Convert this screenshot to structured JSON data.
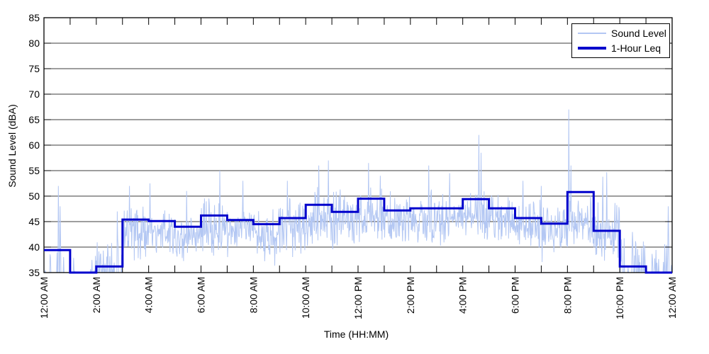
{
  "chart_data": {
    "type": "line",
    "title": "",
    "xlabel": "Time (HH:MM)",
    "ylabel": "Sound Level (dBA)",
    "xlim_hours": [
      0,
      24
    ],
    "ylim": [
      35,
      85
    ],
    "y_ticks": [
      35,
      40,
      45,
      50,
      55,
      60,
      65,
      70,
      75,
      80,
      85
    ],
    "x_ticks": [
      {
        "hour": 0,
        "label": "12:00 AM"
      },
      {
        "hour": 2,
        "label": "2:00 AM"
      },
      {
        "hour": 4,
        "label": "4:00 AM"
      },
      {
        "hour": 6,
        "label": "6:00 AM"
      },
      {
        "hour": 8,
        "label": "8:00 AM"
      },
      {
        "hour": 10,
        "label": "10:00 AM"
      },
      {
        "hour": 12,
        "label": "12:00 PM"
      },
      {
        "hour": 14,
        "label": "2:00 PM"
      },
      {
        "hour": 16,
        "label": "4:00 PM"
      },
      {
        "hour": 18,
        "label": "6:00 PM"
      },
      {
        "hour": 20,
        "label": "8:00 PM"
      },
      {
        "hour": 22,
        "label": "10:00 PM"
      },
      {
        "hour": 24,
        "label": "12:00 AM"
      }
    ],
    "x_minor_tick_every_hours": 1,
    "grid": "horizontal-solid",
    "frame_box": true,
    "legend": {
      "position": "top-right",
      "entries": [
        "Sound Level",
        "1-Hour Leq"
      ]
    },
    "series": [
      {
        "name": "Sound Level",
        "color": "#b3c7f3",
        "style": "noisy-1min-trace",
        "hourly_envelope": [
          {
            "base": 35.0,
            "lo": 35,
            "hi": 39.0,
            "sparse": true,
            "p": 0.12
          },
          {
            "base": 35.0,
            "lo": 35,
            "hi": 39.0,
            "sparse": true,
            "p": 0.1
          },
          {
            "base": 36.0,
            "lo": 35,
            "hi": 41.0,
            "sparse": true,
            "p": 0.45
          },
          {
            "base": 42.5,
            "lo": 36,
            "hi": 48.0,
            "sparse": false,
            "p": 0
          },
          {
            "base": 43.0,
            "lo": 38,
            "hi": 48.5,
            "sparse": false,
            "p": 0
          },
          {
            "base": 42.0,
            "lo": 36,
            "hi": 47.0,
            "sparse": false,
            "p": 0
          },
          {
            "base": 43.5,
            "lo": 37,
            "hi": 50.0,
            "sparse": false,
            "p": 0
          },
          {
            "base": 43.5,
            "lo": 38,
            "hi": 49.0,
            "sparse": false,
            "p": 0
          },
          {
            "base": 42.5,
            "lo": 36,
            "hi": 48.0,
            "sparse": false,
            "p": 0
          },
          {
            "base": 43.5,
            "lo": 37,
            "hi": 50.0,
            "sparse": false,
            "p": 0
          },
          {
            "base": 45.5,
            "lo": 40,
            "hi": 52.0,
            "sparse": false,
            "p": 0
          },
          {
            "base": 45.0,
            "lo": 39,
            "hi": 52.0,
            "sparse": false,
            "p": 0
          },
          {
            "base": 46.0,
            "lo": 40,
            "hi": 52.0,
            "sparse": false,
            "p": 0
          },
          {
            "base": 45.5,
            "lo": 40,
            "hi": 51.0,
            "sparse": false,
            "p": 0
          },
          {
            "base": 45.5,
            "lo": 40,
            "hi": 52.0,
            "sparse": false,
            "p": 0
          },
          {
            "base": 45.5,
            "lo": 40,
            "hi": 51.0,
            "sparse": false,
            "p": 0
          },
          {
            "base": 46.0,
            "lo": 40,
            "hi": 52.0,
            "sparse": false,
            "p": 0
          },
          {
            "base": 45.5,
            "lo": 40,
            "hi": 51.0,
            "sparse": false,
            "p": 0
          },
          {
            "base": 44.5,
            "lo": 38,
            "hi": 50.0,
            "sparse": false,
            "p": 0
          },
          {
            "base": 43.0,
            "lo": 37,
            "hi": 49.0,
            "sparse": false,
            "p": 0
          },
          {
            "base": 45.0,
            "lo": 38,
            "hi": 52.0,
            "sparse": false,
            "p": 0
          },
          {
            "base": 42.0,
            "lo": 36,
            "hi": 49.0,
            "sparse": false,
            "p": 0
          },
          {
            "base": 35.5,
            "lo": 35,
            "hi": 43.0,
            "sparse": true,
            "p": 0.35
          },
          {
            "base": 35.3,
            "lo": 35,
            "hi": 41.0,
            "sparse": true,
            "p": 0.25
          }
        ],
        "spikes": [
          {
            "hour": 0.55,
            "dBA": 52.0
          },
          {
            "hour": 0.62,
            "dBA": 48.0
          },
          {
            "hour": 2.8,
            "dBA": 47.0
          },
          {
            "hour": 3.27,
            "dBA": 52.0
          },
          {
            "hour": 4.05,
            "dBA": 52.5
          },
          {
            "hour": 5.45,
            "dBA": 51.0
          },
          {
            "hour": 6.72,
            "dBA": 55.0
          },
          {
            "hour": 7.6,
            "dBA": 53.0
          },
          {
            "hour": 9.3,
            "dBA": 53.0
          },
          {
            "hour": 10.5,
            "dBA": 56.0
          },
          {
            "hour": 10.87,
            "dBA": 57.0
          },
          {
            "hour": 12.4,
            "dBA": 56.5
          },
          {
            "hour": 12.85,
            "dBA": 54.0
          },
          {
            "hour": 14.7,
            "dBA": 56.0
          },
          {
            "hour": 15.5,
            "dBA": 54.5
          },
          {
            "hour": 16.62,
            "dBA": 62.0
          },
          {
            "hour": 16.7,
            "dBA": 58.5
          },
          {
            "hour": 18.3,
            "dBA": 53.0
          },
          {
            "hour": 19.0,
            "dBA": 52.0
          },
          {
            "hour": 20.05,
            "dBA": 67.0
          },
          {
            "hour": 20.13,
            "dBA": 56.0
          },
          {
            "hour": 21.35,
            "dBA": 53.8
          },
          {
            "hour": 21.5,
            "dBA": 54.7
          },
          {
            "hour": 23.85,
            "dBA": 48.0
          }
        ]
      },
      {
        "name": "1-Hour Leq",
        "color": "#0000cc",
        "style": "hourly-step",
        "hourly_leq_dBA": [
          39.4,
          35.0,
          36.2,
          45.4,
          45.1,
          44.0,
          46.2,
          45.3,
          44.5,
          45.7,
          48.3,
          46.9,
          49.5,
          47.2,
          47.6,
          47.6,
          49.4,
          47.6,
          45.7,
          44.6,
          50.8,
          43.2,
          36.2,
          35.0
        ]
      }
    ],
    "axis_color": "#000000",
    "grid_color": "#3c3c3c",
    "background": "#ffffff"
  }
}
